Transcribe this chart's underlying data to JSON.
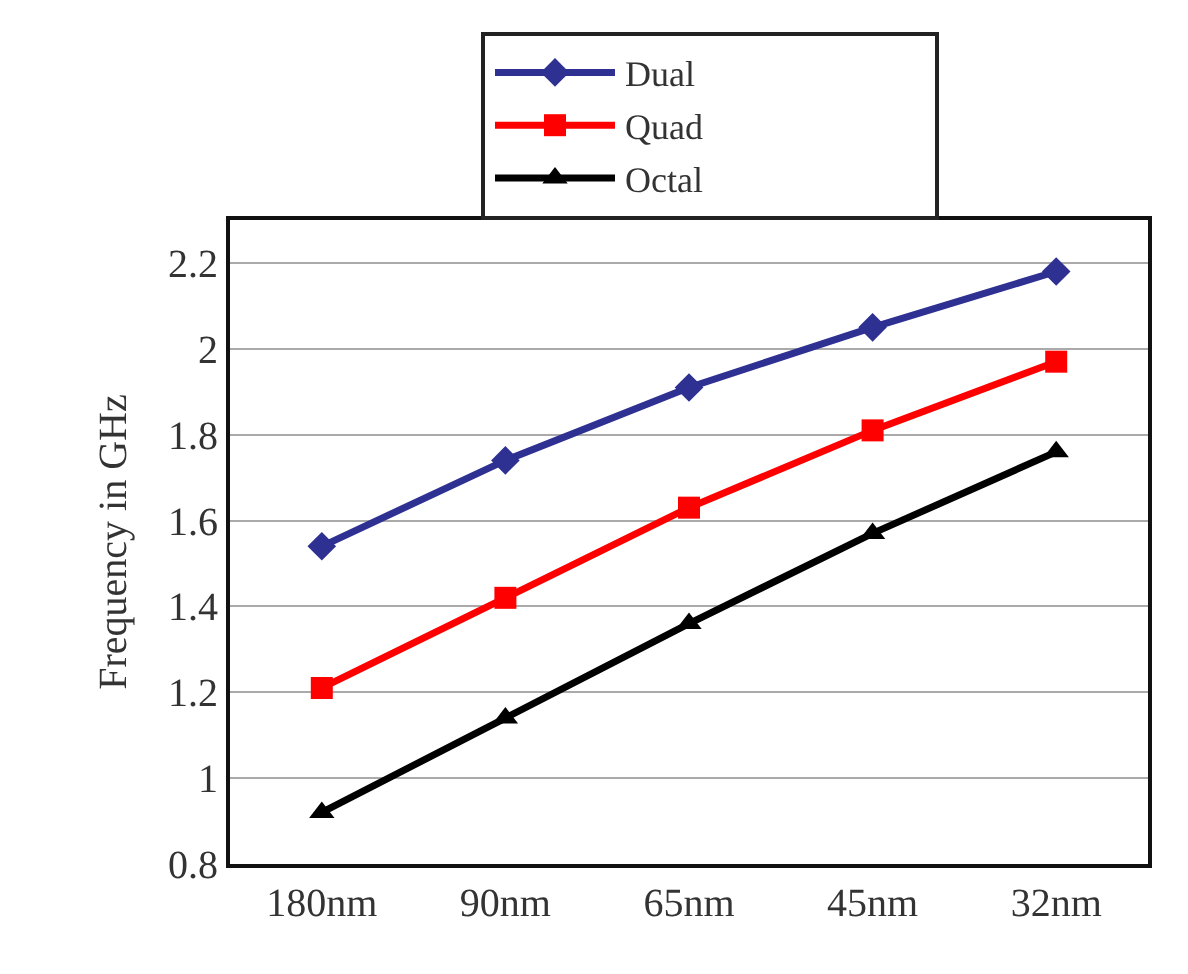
{
  "chart_data": {
    "type": "line",
    "ylabel": "Frequency in GHz",
    "categories": [
      "180nm",
      "90nm",
      "65nm",
      "45nm",
      "32nm"
    ],
    "series": [
      {
        "name": "Dual",
        "color": "#2e3192",
        "marker": "diamond",
        "values": [
          1.54,
          1.74,
          1.91,
          2.05,
          2.18
        ]
      },
      {
        "name": "Quad",
        "color": "#ff0000",
        "marker": "square",
        "values": [
          1.21,
          1.42,
          1.63,
          1.81,
          1.97
        ]
      },
      {
        "name": "Octal",
        "color": "#000000",
        "marker": "triangle",
        "values": [
          0.92,
          1.14,
          1.36,
          1.57,
          1.76
        ]
      }
    ],
    "ylim": [
      0.8,
      2.3
    ],
    "yticks": [
      0.8,
      1,
      1.2,
      1.4,
      1.6,
      1.8,
      2,
      2.2
    ],
    "grid": "y",
    "legend": "top",
    "line_style": "solid"
  }
}
